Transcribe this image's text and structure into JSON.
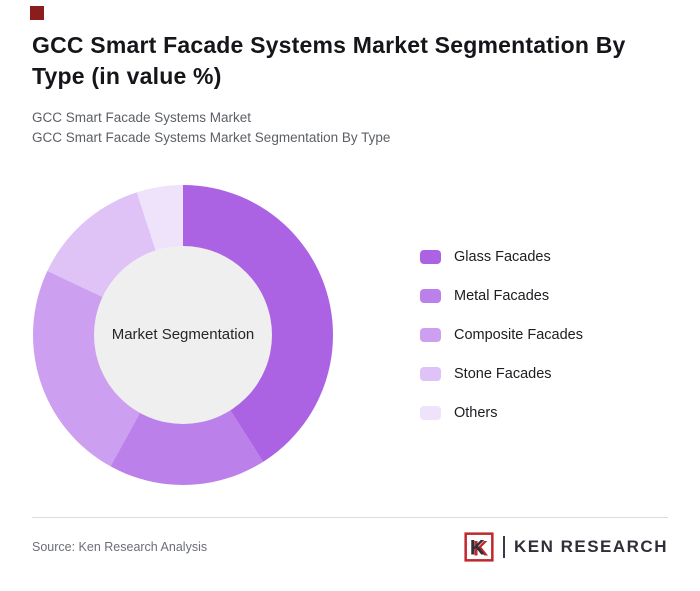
{
  "brand": {
    "accent_red": "#c1272d",
    "mark_color": "#8c1d1d"
  },
  "header": {
    "title": "GCC Smart Facade Systems Market Segmentation By Type (in value %)",
    "subtitle1": "GCC Smart Facade Systems Market",
    "subtitle2": "GCC Smart Facade Systems Market Segmentation By Type"
  },
  "chart_data": {
    "type": "pie",
    "donut": true,
    "title": "GCC Smart Facade Systems Market Segmentation By Type (in value %)",
    "center_label": "Market Segmentation",
    "categories": [
      "Glass Facades",
      "Metal Facades",
      "Composite Facades",
      "Stone Facades",
      "Others"
    ],
    "values": [
      41,
      17,
      24,
      13,
      5
    ],
    "colors": [
      "#ab63e3",
      "#bb80e9",
      "#cd9ff0",
      "#dfc2f6",
      "#efe3fc"
    ],
    "start_angle_deg": 0,
    "direction": "clockwise",
    "legend_position": "right",
    "hole_color": "#efeff0"
  },
  "footer": {
    "source": "Source: Ken Research Analysis",
    "logo_text": "KEN RESEARCH"
  }
}
